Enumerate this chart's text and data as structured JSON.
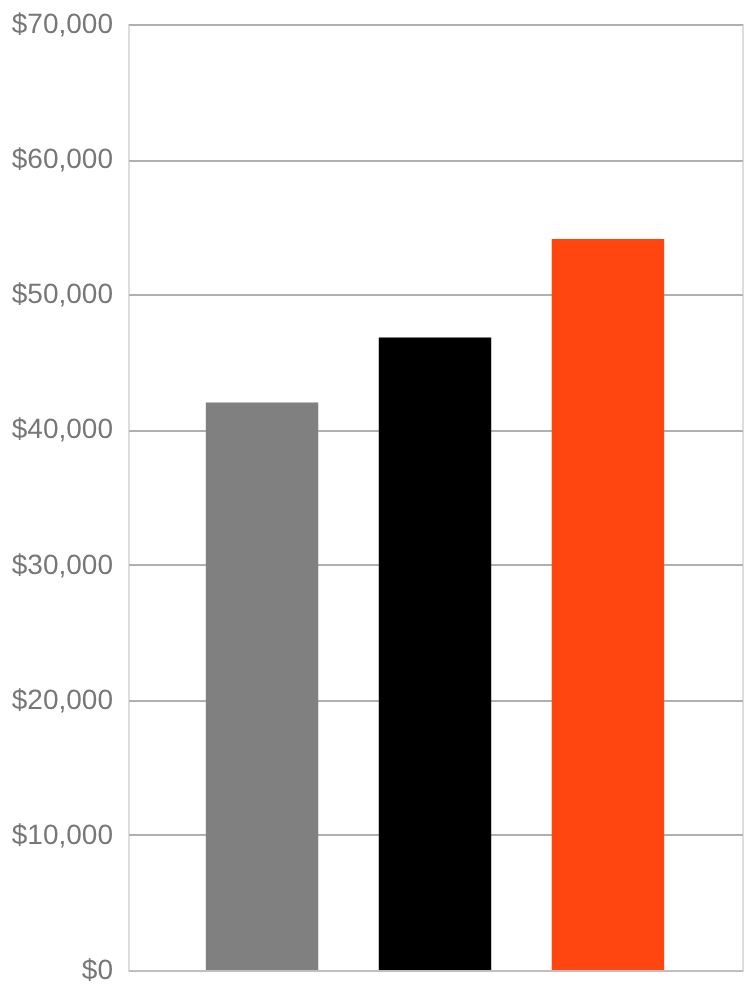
{
  "chart_data": {
    "type": "bar",
    "categories": [
      null,
      null,
      null
    ],
    "values": [
      42000,
      46800,
      54100
    ],
    "colors": [
      "#808080",
      "#000000",
      "#ff4510"
    ],
    "ylim": [
      0,
      70000
    ],
    "yticks": [
      {
        "value": 0,
        "label": "$0"
      },
      {
        "value": 10000,
        "label": "$10,000"
      },
      {
        "value": 20000,
        "label": "$20,000"
      },
      {
        "value": 30000,
        "label": "$30,000"
      },
      {
        "value": 40000,
        "label": "$40,000"
      },
      {
        "value": 50000,
        "label": "$50,000"
      },
      {
        "value": 60000,
        "label": "$60,000"
      },
      {
        "value": 70000,
        "label": "$70,000"
      }
    ],
    "grid": "y",
    "tick_labels": "y",
    "legend": false
  }
}
